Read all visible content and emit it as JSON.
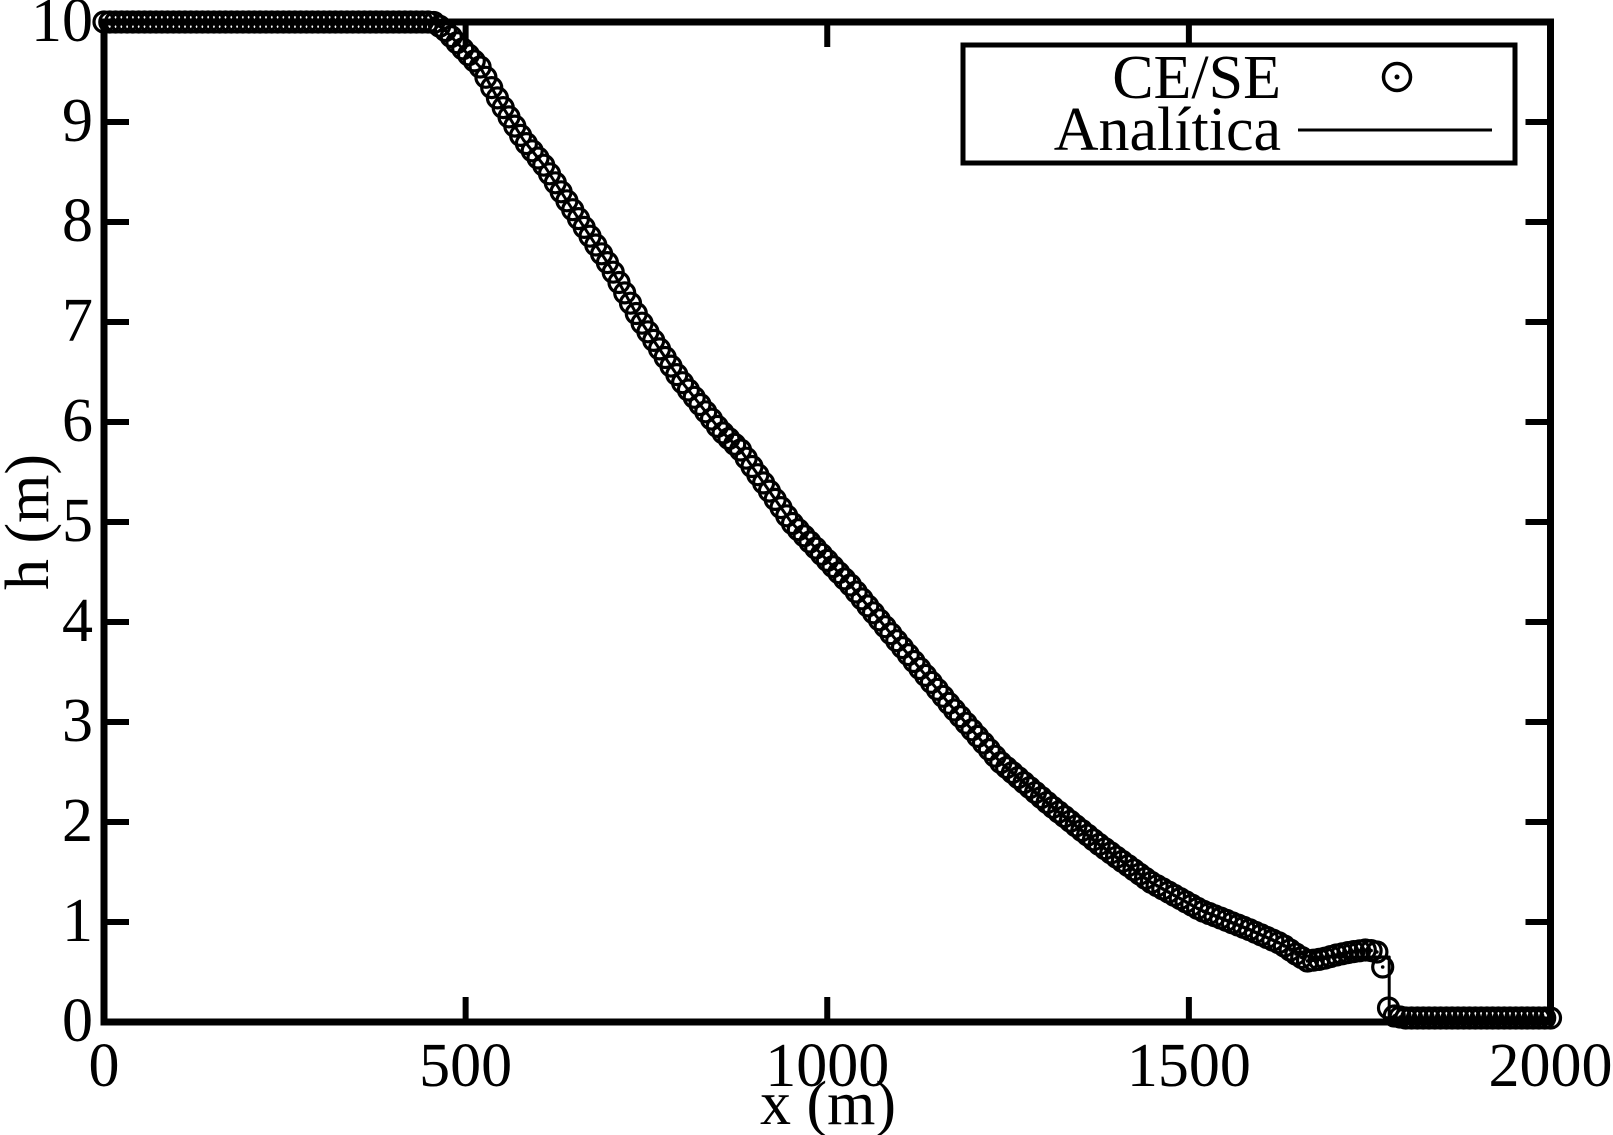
{
  "figure": {
    "background": "#ffffff",
    "ink": "#000000"
  },
  "chart_data": {
    "type": "line",
    "title": "",
    "xlabel": "x (m)",
    "ylabel": "h (m)",
    "xlim": [
      0,
      2000
    ],
    "ylim": [
      0,
      10
    ],
    "x_ticks": [
      0,
      500,
      1000,
      1500,
      2000
    ],
    "y_ticks": [
      0,
      1,
      2,
      3,
      4,
      5,
      6,
      7,
      8,
      9,
      10
    ],
    "grid": false,
    "legend_position": "top-right",
    "legend_entries": [
      "CE/SE",
      "Analítica"
    ],
    "series": [
      {
        "name": "CE/SE",
        "style": "scatter",
        "marker": "open-circle-with-center-dot",
        "color": "#000000",
        "marker_spacing_x": 8,
        "profile_points": [
          [
            0,
            10
          ],
          [
            455,
            10
          ],
          [
            470,
            9.93
          ],
          [
            520,
            9.55
          ],
          [
            548,
            9.19
          ],
          [
            580,
            8.82
          ],
          [
            610,
            8.55
          ],
          [
            650,
            8.1
          ],
          [
            700,
            7.55
          ],
          [
            741,
            7.02
          ],
          [
            797,
            6.42
          ],
          [
            852,
            5.92
          ],
          [
            880,
            5.72
          ],
          [
            950,
            5.0
          ],
          [
            1032,
            4.37
          ],
          [
            1101,
            3.77
          ],
          [
            1170,
            3.17
          ],
          [
            1239,
            2.6
          ],
          [
            1308,
            2.17
          ],
          [
            1377,
            1.77
          ],
          [
            1447,
            1.4
          ],
          [
            1516,
            1.12
          ],
          [
            1585,
            0.92
          ],
          [
            1628,
            0.78
          ],
          [
            1648,
            0.68
          ],
          [
            1664,
            0.61
          ],
          [
            1684,
            0.63
          ],
          [
            1704,
            0.67
          ],
          [
            1724,
            0.7
          ],
          [
            1744,
            0.72
          ],
          [
            1758,
            0.71
          ],
          [
            1764,
            0.68
          ],
          [
            1768,
            0.55
          ],
          [
            1776,
            0.14
          ],
          [
            1784,
            0.06
          ],
          [
            1800,
            0.04
          ],
          [
            2000,
            0.04
          ]
        ]
      },
      {
        "name": "Analítica",
        "style": "line",
        "color": "#000000",
        "points": [
          [
            0,
            10
          ],
          [
            455,
            10
          ],
          [
            470,
            9.93
          ],
          [
            520,
            9.55
          ],
          [
            548,
            9.19
          ],
          [
            580,
            8.82
          ],
          [
            610,
            8.55
          ],
          [
            650,
            8.1
          ],
          [
            700,
            7.55
          ],
          [
            741,
            7.02
          ],
          [
            797,
            6.42
          ],
          [
            852,
            5.92
          ],
          [
            880,
            5.72
          ],
          [
            950,
            5.0
          ],
          [
            1032,
            4.37
          ],
          [
            1101,
            3.77
          ],
          [
            1170,
            3.17
          ],
          [
            1239,
            2.6
          ],
          [
            1308,
            2.17
          ],
          [
            1377,
            1.77
          ],
          [
            1447,
            1.4
          ],
          [
            1516,
            1.12
          ],
          [
            1585,
            0.92
          ],
          [
            1628,
            0.78
          ],
          [
            1652,
            0.69
          ],
          [
            1668,
            0.65
          ],
          [
            1777,
            0.65
          ],
          [
            1777,
            0.04
          ],
          [
            2000,
            0.04
          ]
        ]
      }
    ]
  }
}
